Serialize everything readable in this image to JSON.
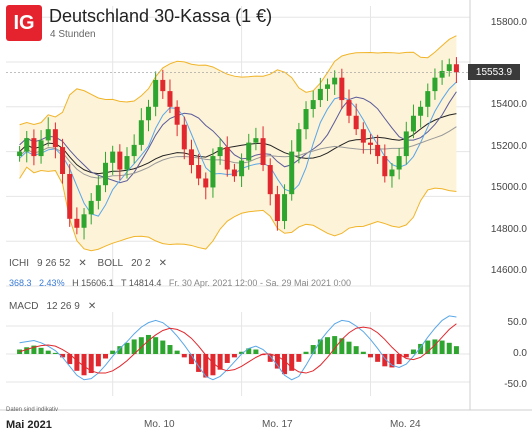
{
  "header": {
    "logo_text": "IG",
    "title": "Deutschland 30-Kassa (1 €)",
    "subtitle": "4 Stunden"
  },
  "price_box": "15553.9",
  "indicators_row": {
    "ichi": "ICHI",
    "ichi_params": "9  26  52",
    "ichi_x": "✕",
    "boll": "BOLL",
    "boll_params": "20  2",
    "boll_x": "✕"
  },
  "info_bar": {
    "change": "368.3",
    "change_pct": "2.43%",
    "high": "H 15606.1",
    "low": "T 14814.4",
    "range": "Fr. 30 Apr. 2021 12:00 - Sa. 29 Mai 2021 0:00"
  },
  "macd_row": {
    "label": "MACD",
    "params": "12  26  9",
    "close_x": "✕"
  },
  "footnote": "Daten sind indikativ",
  "x_axis": {
    "month": "Mai 2021",
    "ticks": [
      "Mo. 10",
      "Mo. 17",
      "Mo. 24"
    ]
  },
  "y_axis_price": [
    "15800.0",
    "15600.0",
    "15400.0",
    "15200.0",
    "15000.0",
    "14800.0",
    "14600.0"
  ],
  "y_axis_macd": [
    "50.0",
    "0.0",
    "-50.0"
  ],
  "colors": {
    "up": "#2ea52e",
    "down": "#e0282e",
    "bollinger": "#f0b429",
    "cloud": "#fdf3d8",
    "macd_line": "#5aa7e8",
    "signal_line": "#e0282e",
    "grid": "#e6e6e6"
  },
  "chart_data": [
    {
      "type": "candlestick",
      "title": "Deutschland 30-Kassa (1 €)",
      "timeframe": "4 Stunden",
      "ylim": [
        14600,
        15850
      ],
      "x_ticks": [
        "Mo. 10",
        "Mo. 17",
        "Mo. 24"
      ],
      "close": [
        15200,
        15260,
        15180,
        15250,
        15300,
        15220,
        15100,
        14900,
        14860,
        14920,
        14980,
        15050,
        15150,
        15200,
        15120,
        15180,
        15230,
        15340,
        15400,
        15520,
        15470,
        15400,
        15320,
        15210,
        15140,
        15080,
        15040,
        15180,
        15220,
        15120,
        15090,
        15160,
        15240,
        15260,
        15140,
        15010,
        14890,
        15010,
        15200,
        15300,
        15390,
        15430,
        15480,
        15500,
        15530,
        15430,
        15360,
        15300,
        15240,
        15230,
        15180,
        15090,
        15120,
        15180,
        15290,
        15360,
        15400,
        15470,
        15530,
        15560,
        15590,
        15554
      ],
      "high": 15606.1,
      "low": 14814.4,
      "last": 15553.9,
      "change": 368.3,
      "change_pct": 2.43
    },
    {
      "type": "bar",
      "title": "MACD 12 26 9",
      "ylim": [
        -75,
        75
      ],
      "histogram": [
        8,
        12,
        15,
        11,
        6,
        2,
        -6,
        -18,
        -30,
        -38,
        -34,
        -22,
        -8,
        6,
        14,
        20,
        26,
        30,
        34,
        30,
        24,
        16,
        6,
        -6,
        -18,
        -32,
        -42,
        -38,
        -28,
        -16,
        -6,
        4,
        10,
        8,
        -2,
        -14,
        -26,
        -36,
        -30,
        -14,
        4,
        16,
        26,
        30,
        32,
        28,
        22,
        14,
        4,
        -6,
        -14,
        -22,
        -24,
        -18,
        -6,
        8,
        18,
        24,
        26,
        24,
        20,
        14
      ],
      "macd_line": [
        20,
        22,
        24,
        20,
        14,
        6,
        -6,
        -22,
        -38,
        -46,
        -44,
        -34,
        -20,
        -4,
        10,
        22,
        36,
        48,
        56,
        60,
        56,
        46,
        32,
        16,
        -2,
        -22,
        -40,
        -46,
        -40,
        -28,
        -14,
        0,
        10,
        14,
        8,
        -4,
        -20,
        -38,
        -46,
        -40,
        -20,
        2,
        24,
        40,
        54,
        60,
        58,
        50,
        40,
        26,
        10,
        -8,
        -20,
        -24,
        -18,
        -4,
        12,
        30,
        46,
        60,
        68,
        66
      ],
      "signal_line": [
        4,
        8,
        12,
        15,
        16,
        14,
        8,
        0,
        -12,
        -22,
        -30,
        -34,
        -34,
        -30,
        -22,
        -12,
        0,
        12,
        24,
        34,
        42,
        46,
        44,
        38,
        28,
        14,
        -2,
        -16,
        -26,
        -30,
        -28,
        -22,
        -14,
        -6,
        0,
        0,
        -4,
        -12,
        -24,
        -32,
        -34,
        -30,
        -20,
        -6,
        10,
        26,
        38,
        46,
        48,
        46,
        38,
        26,
        12,
        0,
        -8,
        -10,
        -6,
        4,
        16,
        30,
        44,
        54
      ]
    }
  ]
}
